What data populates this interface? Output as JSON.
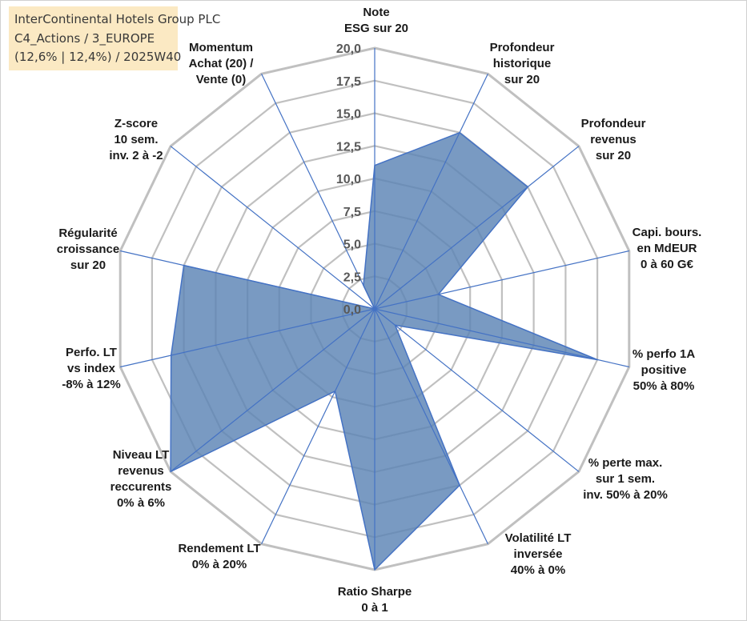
{
  "header": {
    "lines": [
      "InterContinental Hotels Group PLC",
      "C4_Actions / 3_EUROPE",
      "(12,6% | 12,4%) / 2025W40"
    ]
  },
  "chart_data": {
    "type": "radar",
    "rmin": 0,
    "rmax": 20,
    "ticks": [
      "0,0",
      "2,5",
      "5,0",
      "7,5",
      "10,0",
      "12,5",
      "15,0",
      "17,5",
      "20,0"
    ],
    "axes": [
      {
        "label": [
          "Note",
          "ESG sur 20"
        ],
        "value": 11
      },
      {
        "label": [
          "Profondeur",
          "historique",
          "sur 20"
        ],
        "value": 15
      },
      {
        "label": [
          "Profondeur",
          "revenus",
          "sur 20"
        ],
        "value": 15
      },
      {
        "label": [
          "Capi. bours.",
          "en MdEUR",
          "0 à 60 G€"
        ],
        "value": 5
      },
      {
        "label": [
          "% perfo 1A",
          "positive",
          "50% à 80%"
        ],
        "value": 17.5
      },
      {
        "label": [
          "% perte max.",
          "sur 1 sem.",
          "inv. 50% à 20%"
        ],
        "value": 2
      },
      {
        "label": [
          "Volatilité LT",
          "inversée",
          "40% à 0%"
        ],
        "value": 15
      },
      {
        "label": [
          "Ratio Sharpe",
          "0 à 1"
        ],
        "value": 20
      },
      {
        "label": [
          "Rendement LT",
          "0% à 20%"
        ],
        "value": 7
      },
      {
        "label": [
          "Niveau LT",
          "revenus",
          "reccurents",
          "0% à 6%"
        ],
        "value": 20
      },
      {
        "label": [
          "Perfo. LT",
          "vs index",
          "-8% à 12%"
        ],
        "value": 16
      },
      {
        "label": [
          "Régularité",
          "croissance",
          "sur 20"
        ],
        "value": 15
      },
      {
        "label": [
          "Z-score",
          "10 sem.",
          "inv. 2 à -2"
        ],
        "value": 0
      },
      {
        "label": [
          "Momentum",
          "Achat (20) /",
          "Vente (0)"
        ],
        "value": 2
      }
    ],
    "colors": {
      "fill": "#5b84b5",
      "fill_opacity": 0.82,
      "outline": "#4472c4",
      "grid": "#c0c0c0",
      "spoke": "#4472c4"
    }
  }
}
